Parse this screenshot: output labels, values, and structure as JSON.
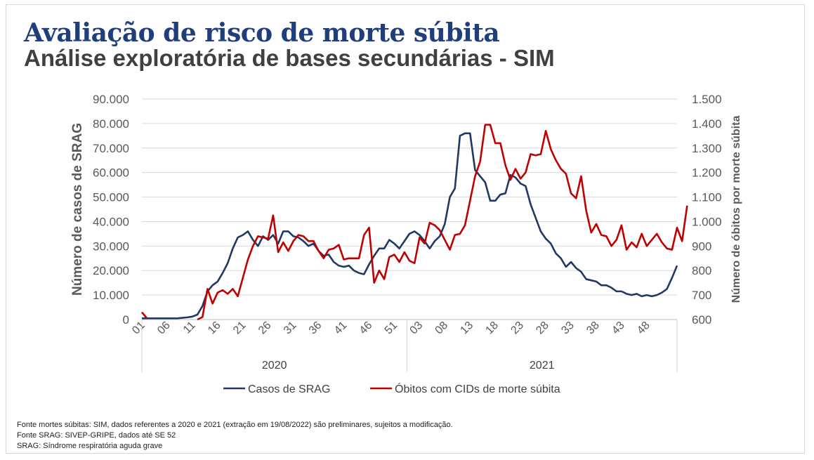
{
  "header": {
    "title": "Avaliação de risco de morte súbita",
    "subtitle": "Análise exploratória de bases secundárias - SIM"
  },
  "footnotes": [
    "Fonte mortes súbitas: SIM, dados referentes a 2020 e 2021 (extração em 19/08/2022) são preliminares, sujeitos a modificação.",
    "Fonte SRAG: SIVEP-GRIPE, dados até SE 52",
    "SRAG: Síndrome respiratória aguda grave"
  ],
  "chart_data": {
    "type": "line",
    "title": "",
    "ylabel": "Número de casos de SRAG",
    "y2label": "Número de óbitos  por morte súbita",
    "ylim": [
      0,
      90000
    ],
    "y2lim": [
      600,
      1500
    ],
    "yticks": [
      0,
      10000,
      20000,
      30000,
      40000,
      50000,
      60000,
      70000,
      80000,
      90000
    ],
    "ytick_labels": [
      "0",
      "10.000",
      "20.000",
      "30.000",
      "40.000",
      "50.000",
      "60.000",
      "70.000",
      "80.000",
      "90.000"
    ],
    "y2ticks": [
      600,
      700,
      800,
      900,
      1000,
      1100,
      1200,
      1300,
      1400,
      1500
    ],
    "y2tick_labels": [
      "600",
      "700",
      "800",
      "900",
      "1.000",
      "1.100",
      "1.200",
      "1.300",
      "1.400",
      "1.500"
    ],
    "xtick_labels": [
      "01",
      "06",
      "11",
      "16",
      "21",
      "26",
      "31",
      "36",
      "41",
      "46",
      "51",
      "03",
      "08",
      "13",
      "18",
      "23",
      "28",
      "33",
      "38",
      "43",
      "48"
    ],
    "xtick_index": [
      0,
      5,
      10,
      15,
      20,
      25,
      30,
      35,
      40,
      45,
      50,
      55,
      60,
      65,
      70,
      75,
      80,
      85,
      90,
      95,
      100
    ],
    "year_groups": [
      {
        "label": "2020",
        "start": 0,
        "end": 52
      },
      {
        "label": "2021",
        "start": 53,
        "end": 104
      }
    ],
    "grid": true,
    "legend": "bottom",
    "series": [
      {
        "name": "Casos de SRAG",
        "axis": "left",
        "color": "#1f3864",
        "values": [
          500,
          500,
          500,
          500,
          500,
          500,
          500,
          500,
          700,
          900,
          1200,
          2000,
          5500,
          11500,
          14000,
          15500,
          19000,
          23000,
          29000,
          33500,
          34500,
          36000,
          32500,
          30000,
          34000,
          32500,
          34500,
          31000,
          36000,
          36000,
          34000,
          33500,
          32000,
          30000,
          31000,
          28000,
          26000,
          26500,
          23500,
          22000,
          21500,
          22000,
          20000,
          19000,
          18500,
          22500,
          26000,
          29000,
          29000,
          32500,
          31000,
          29000,
          32000,
          35000,
          36000,
          34500,
          32000,
          29000,
          32000,
          34000,
          39000,
          50000,
          53500,
          75000,
          76000,
          76000,
          61000,
          58500,
          56000,
          48500,
          48500,
          51000,
          51500,
          59000,
          58000,
          55500,
          54500,
          47000,
          41500,
          36000,
          33000,
          31000,
          27000,
          25000,
          21500,
          23500,
          21000,
          19500,
          16500,
          16000,
          15500,
          14000,
          14000,
          13000,
          11500,
          11500,
          10500,
          10000,
          10500,
          9500,
          10000,
          9500,
          10000,
          11000,
          12500,
          17000,
          22000
        ]
      },
      {
        "name": "Óbitos com CIDs de morte súbita",
        "axis": "right",
        "color": "#c00000",
        "values": [
          630,
          605,
          null,
          null,
          null,
          null,
          null,
          null,
          null,
          null,
          null,
          600,
          610,
          725,
          665,
          710,
          720,
          705,
          725,
          695,
          770,
          845,
          900,
          940,
          935,
          930,
          1025,
          875,
          915,
          880,
          920,
          945,
          940,
          920,
          920,
          880,
          850,
          885,
          890,
          905,
          845,
          850,
          850,
          850,
          945,
          975,
          750,
          800,
          765,
          855,
          865,
          835,
          875,
          840,
          830,
          935,
          910,
          995,
          985,
          965,
          925,
          885,
          945,
          950,
          985,
          1085,
          1185,
          1245,
          1395,
          1395,
          1320,
          1320,
          1230,
          1170,
          1215,
          1175,
          1200,
          1275,
          1270,
          1275,
          1370,
          1295,
          1250,
          1215,
          1195,
          1115,
          1095,
          1185,
          1045,
          955,
          990,
          945,
          940,
          900,
          925,
          985,
          885,
          915,
          895,
          950,
          900,
          925,
          950,
          915,
          890,
          885,
          975,
          920,
          1065
        ]
      }
    ]
  }
}
